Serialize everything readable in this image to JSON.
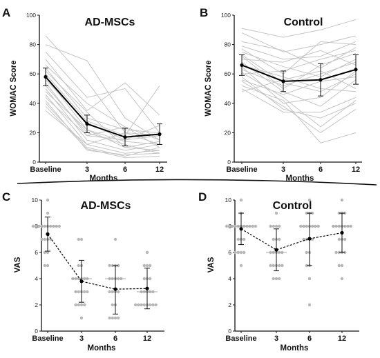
{
  "chart_data": [
    {
      "panel": "A",
      "type": "line",
      "title": "AD-MSCs",
      "xlabel": "Months",
      "ylabel": "WOMAC Score",
      "categories": [
        "Baseline",
        "3",
        "6",
        "12"
      ],
      "ylim": [
        0,
        100
      ],
      "yticks": [
        "0",
        "20",
        "40",
        "60",
        "80",
        "100"
      ],
      "mean": [
        58,
        26,
        17,
        19
      ],
      "error": [
        [
          52,
          64
        ],
        [
          20,
          32
        ],
        [
          11,
          23
        ],
        [
          12,
          26
        ]
      ],
      "individual_lines": [
        [
          86,
          55,
          20,
          12
        ],
        [
          80,
          69,
          30,
          15
        ],
        [
          75,
          44,
          50,
          20
        ],
        [
          70,
          35,
          54,
          32
        ],
        [
          66,
          40,
          24,
          15
        ],
        [
          64,
          30,
          22,
          20
        ],
        [
          62,
          34,
          10,
          8
        ],
        [
          60,
          28,
          18,
          52
        ],
        [
          58,
          22,
          14,
          12
        ],
        [
          56,
          27,
          15,
          25
        ],
        [
          54,
          18,
          24,
          10
        ],
        [
          52,
          20,
          12,
          6
        ],
        [
          50,
          15,
          8,
          12
        ],
        [
          48,
          22,
          10,
          14
        ],
        [
          46,
          12,
          6,
          8
        ],
        [
          44,
          18,
          15,
          18
        ],
        [
          42,
          8,
          5,
          6
        ],
        [
          40,
          10,
          4,
          10
        ],
        [
          38,
          9,
          3,
          4
        ],
        [
          35,
          12,
          20,
          18
        ]
      ]
    },
    {
      "panel": "B",
      "type": "line",
      "title": "Control",
      "xlabel": "Months",
      "ylabel": "WOMAC Score",
      "categories": [
        "Baseline",
        "3",
        "6",
        "12"
      ],
      "ylim": [
        0,
        100
      ],
      "yticks": [
        "0",
        "20",
        "40",
        "60",
        "80",
        "100"
      ],
      "mean": [
        66,
        55,
        56,
        63
      ],
      "error": [
        [
          59,
          73
        ],
        [
          48,
          62
        ],
        [
          45,
          67
        ],
        [
          53,
          73
        ]
      ],
      "individual_lines": [
        [
          91,
          85,
          90,
          97
        ],
        [
          88,
          75,
          80,
          86
        ],
        [
          82,
          76,
          64,
          78
        ],
        [
          79,
          70,
          72,
          82
        ],
        [
          77,
          60,
          82,
          80
        ],
        [
          75,
          65,
          58,
          70
        ],
        [
          73,
          54,
          48,
          60
        ],
        [
          72,
          50,
          66,
          74
        ],
        [
          70,
          68,
          76,
          66
        ],
        [
          68,
          48,
          38,
          56
        ],
        [
          66,
          58,
          50,
          48
        ],
        [
          65,
          40,
          44,
          62
        ],
        [
          63,
          52,
          60,
          68
        ],
        [
          61,
          44,
          24,
          42
        ],
        [
          60,
          62,
          70,
          76
        ],
        [
          58,
          36,
          30,
          40
        ],
        [
          56,
          46,
          55,
          58
        ],
        [
          55,
          38,
          20,
          36
        ],
        [
          52,
          42,
          13,
          20
        ],
        [
          50,
          34,
          34,
          44
        ],
        [
          48,
          56,
          62,
          50
        ]
      ]
    },
    {
      "panel": "C",
      "type": "scatter",
      "title": "AD-MSCs",
      "xlabel": "Months",
      "ylabel": "VAS",
      "categories": [
        "Baseline",
        "3",
        "6",
        "12"
      ],
      "ylim": [
        0,
        10
      ],
      "yticks": [
        "0",
        "2",
        "4",
        "6",
        "8",
        "10"
      ],
      "mean": [
        7.4,
        3.8,
        3.2,
        3.25
      ],
      "error": [
        [
          6.1,
          8.7
        ],
        [
          2.2,
          5.4
        ],
        [
          1.3,
          5.0
        ],
        [
          1.7,
          4.8
        ]
      ],
      "points": [
        [
          10,
          9,
          8,
          8,
          8,
          8,
          8,
          8,
          8,
          8,
          8,
          8,
          7,
          7,
          7,
          7,
          6,
          6,
          5,
          5
        ],
        [
          7,
          7,
          5,
          5,
          4,
          4,
          4,
          4,
          4,
          4,
          3,
          3,
          3,
          3,
          3,
          2,
          2,
          2,
          1,
          2
        ],
        [
          7,
          5,
          5,
          5,
          5,
          4,
          4,
          4,
          4,
          4,
          3,
          3,
          3,
          3,
          2,
          2,
          1,
          1,
          1,
          1
        ],
        [
          6,
          5,
          5,
          5,
          4,
          4,
          4,
          3,
          3,
          3,
          3,
          3,
          2,
          2,
          2,
          2,
          2,
          2,
          2,
          2
        ]
      ]
    },
    {
      "panel": "D",
      "type": "scatter",
      "title": "Control",
      "xlabel": "Months",
      "ylabel": "VAS",
      "categories": [
        "Baseline",
        "3",
        "6",
        "12"
      ],
      "ylim": [
        0,
        10
      ],
      "yticks": [
        "0",
        "2",
        "4",
        "6",
        "8",
        "10"
      ],
      "mean": [
        7.8,
        6.2,
        7.05,
        7.5
      ],
      "error": [
        [
          6.6,
          9.0
        ],
        [
          4.6,
          7.8
        ],
        [
          5.0,
          9.0
        ],
        [
          6.0,
          9.0
        ]
      ],
      "points": [
        [
          10,
          9,
          8,
          8,
          8,
          8,
          8,
          8,
          8,
          8,
          8,
          8,
          8,
          7,
          7,
          7,
          6,
          6,
          6,
          5,
          6
        ],
        [
          9,
          8,
          8,
          8,
          8,
          7,
          7,
          7,
          6,
          6,
          6,
          6,
          6,
          5,
          5,
          5,
          5,
          5,
          4,
          4,
          4
        ],
        [
          10,
          9,
          9,
          9,
          8,
          8,
          8,
          8,
          8,
          8,
          8,
          7,
          7,
          7,
          7,
          6,
          6,
          5,
          5,
          4,
          2
        ],
        [
          10,
          9,
          9,
          9,
          8,
          8,
          8,
          8,
          8,
          8,
          8,
          7,
          7,
          7,
          6,
          6,
          6,
          6,
          5,
          5,
          4
        ]
      ]
    }
  ]
}
